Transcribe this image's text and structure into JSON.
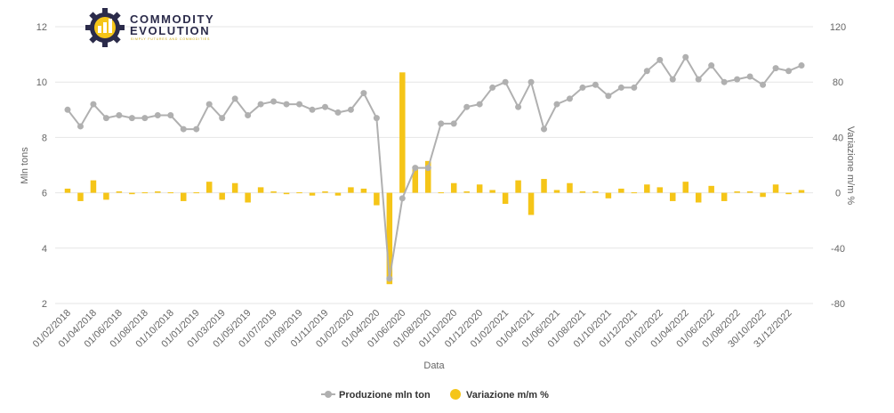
{
  "logo": {
    "line1": "COMMODITY",
    "line2": "EVOLUTION",
    "tagline": "SIMPLY FUTURES AND COMMODITIES",
    "accent_color": "#f5c518",
    "dark_color": "#2b2b4a"
  },
  "chart_data": {
    "type": "line+bar",
    "xlabel": "Data",
    "ylabel_left": "Mln tons",
    "ylabel_right": "Variazione m/m %",
    "ylim_left": [
      2,
      12
    ],
    "ylim_right": [
      -80,
      120
    ],
    "yticks_left": [
      "2",
      "4",
      "6",
      "8",
      "10",
      "12"
    ],
    "yticks_right": [
      "-80",
      "-40",
      "0",
      "40",
      "80",
      "120"
    ],
    "x_tick_labels": [
      "01/02/2018",
      "01/04/2018",
      "01/06/2018",
      "01/08/2018",
      "01/10/2018",
      "01/01/2019",
      "01/03/2019",
      "01/05/2019",
      "01/07/2019",
      "01/09/2019",
      "01/11/2019",
      "01/02/2020",
      "01/04/2020",
      "01/06/2020",
      "01/08/2020",
      "01/10/2020",
      "01/12/2020",
      "01/02/2021",
      "01/04/2021",
      "01/06/2021",
      "01/08/2021",
      "01/10/2021",
      "01/12/2021",
      "01/02/2022",
      "01/04/2022",
      "01/06/2022",
      "01/08/2022",
      "30/10/2022",
      "31/12/2022"
    ],
    "grid": "horizontal",
    "legend_position": "bottom-center",
    "series": [
      {
        "name": "Produzione mln ton",
        "type": "line",
        "color": "#b0b0b0",
        "axis": "left",
        "values": [
          9.0,
          8.4,
          9.2,
          8.7,
          8.8,
          8.7,
          8.7,
          8.8,
          8.8,
          8.3,
          8.3,
          9.2,
          8.7,
          9.4,
          8.8,
          9.2,
          9.3,
          9.2,
          9.2,
          9.0,
          9.1,
          8.9,
          9.0,
          9.6,
          8.7,
          2.9,
          5.8,
          6.9,
          6.9,
          8.5,
          8.5,
          9.1,
          9.2,
          9.8,
          10.0,
          9.1,
          10.0,
          8.3,
          9.2,
          9.4,
          9.8,
          9.9,
          9.5,
          9.8,
          9.8,
          10.4,
          10.8,
          10.1,
          10.9,
          10.1,
          10.6,
          10.0,
          10.1,
          10.2,
          9.9,
          10.5,
          10.4,
          10.6
        ]
      },
      {
        "name": "Variazione m/m %",
        "type": "bar",
        "color": "#f5c518",
        "axis": "right",
        "values": [
          3,
          -6,
          9,
          -5,
          1,
          -1,
          0,
          1,
          0,
          -6,
          0,
          8,
          -5,
          7,
          -7,
          4,
          1,
          -1,
          0,
          -2,
          1,
          -2,
          4,
          3,
          -9,
          -66,
          87,
          19,
          23,
          0,
          7,
          1,
          6,
          2,
          -8,
          9,
          -16,
          10,
          2,
          7,
          1,
          1,
          -4,
          3,
          0,
          6,
          4,
          -6,
          8,
          -7,
          5,
          -6,
          1,
          1,
          -3,
          6,
          -1,
          2
        ]
      }
    ]
  },
  "legend": {
    "items": [
      {
        "label": "Produzione mln ton",
        "color": "#b0b0b0"
      },
      {
        "label": "Variazione m/m %",
        "color": "#f5c518"
      }
    ]
  }
}
